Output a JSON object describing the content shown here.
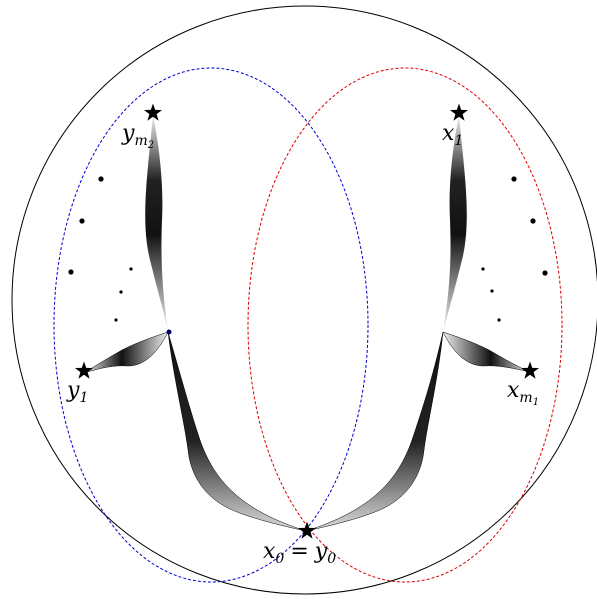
{
  "labels": {
    "x0_eq_y0": {
      "left": "x",
      "left_sub": "0",
      "eq": "=",
      "right": "y",
      "right_sub": "0"
    },
    "x1": {
      "base": "x",
      "sub": "1"
    },
    "xm1": {
      "base": "x",
      "sub": "m",
      "subsub": "1"
    },
    "y1": {
      "base": "y",
      "sub": "1"
    },
    "ym2": {
      "base": "y",
      "sub": "m",
      "subsub": "2"
    }
  },
  "colors": {
    "outer_circle": "#000000",
    "left_ellipse": "#0000cc",
    "right_ellipse": "#dd0000",
    "ribbon_dark": "#111111",
    "ribbon_light": "#bbbbbb",
    "star": "#000000"
  },
  "icons": {
    "star": "star-icon",
    "dot": "dot-icon"
  }
}
